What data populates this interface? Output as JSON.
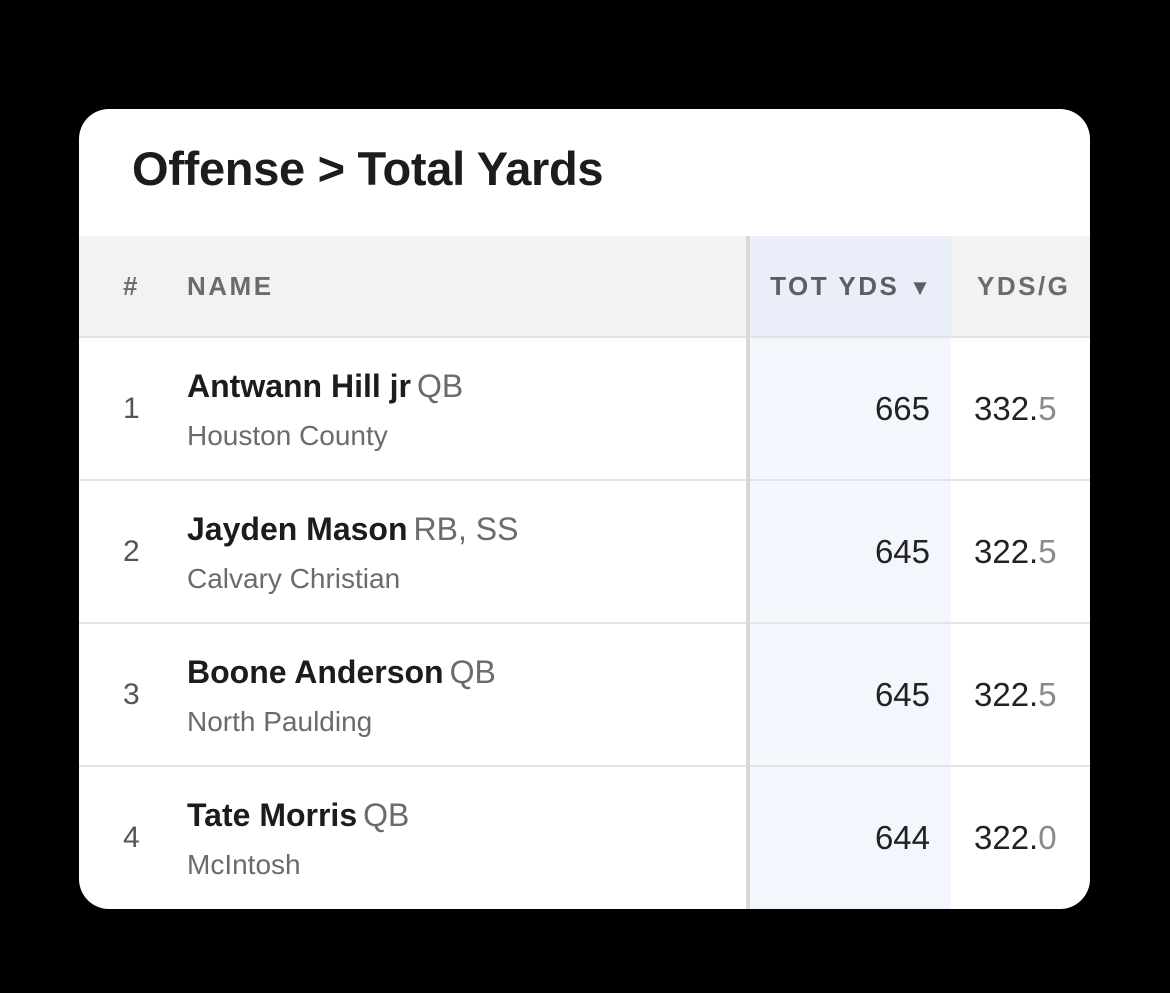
{
  "title": "Offense > Total Yards",
  "columns": {
    "rank": "#",
    "name": "NAME",
    "tot_yds": "TOT YDS",
    "sort_arrow": "▼",
    "yds_per_game": "YDS/G"
  },
  "rows": [
    {
      "rank": "1",
      "name": "Antwann Hill jr",
      "position": "QB",
      "school": "Houston County",
      "tot_yds": "665",
      "ypg_int": "332.",
      "ypg_dec": "5"
    },
    {
      "rank": "2",
      "name": "Jayden Mason",
      "position": "RB, SS",
      "school": "Calvary Christian",
      "tot_yds": "645",
      "ypg_int": "322.",
      "ypg_dec": "5"
    },
    {
      "rank": "3",
      "name": "Boone Anderson",
      "position": "QB",
      "school": "North Paulding",
      "tot_yds": "645",
      "ypg_int": "322.",
      "ypg_dec": "5"
    },
    {
      "rank": "4",
      "name": "Tate Morris",
      "position": "QB",
      "school": "McIntosh",
      "tot_yds": "644",
      "ypg_int": "322.",
      "ypg_dec": "0"
    }
  ],
  "colors": {
    "page_bg": "#000000",
    "card_bg": "#ffffff",
    "header_bg": "#f2f2f2",
    "sorted_column_bg": "#f3f6fd",
    "primary_text": "#1c1c1c",
    "secondary_text": "#6b6b6b"
  }
}
